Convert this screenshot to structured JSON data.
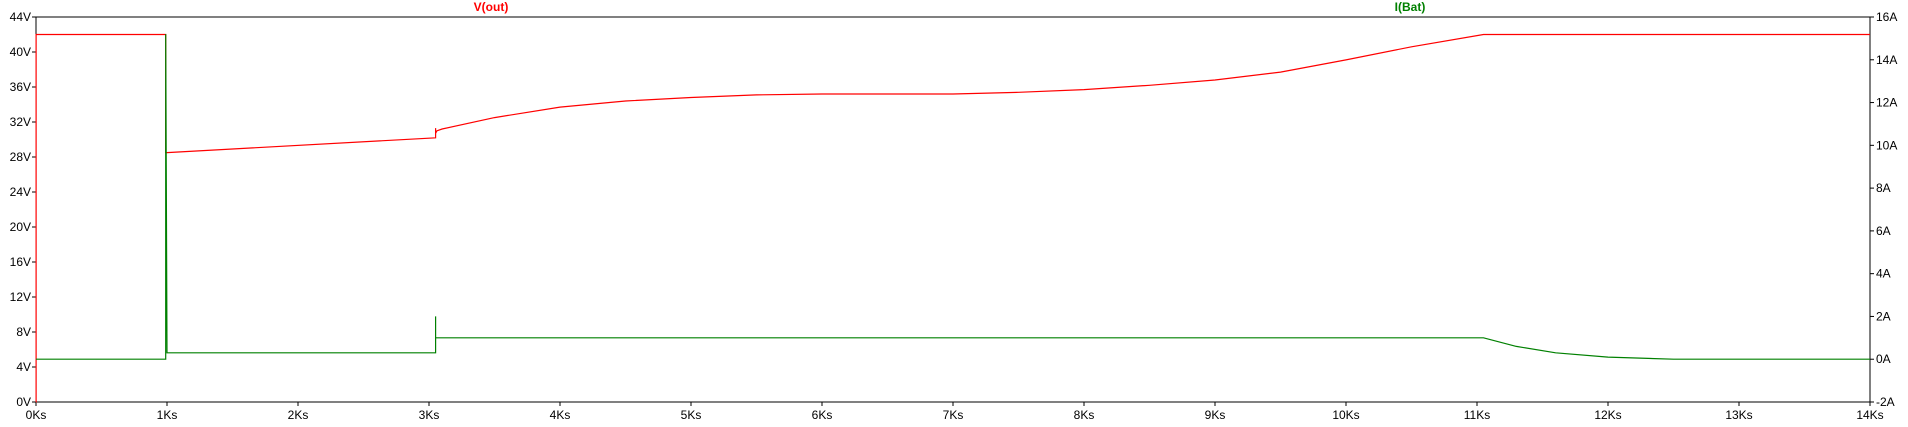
{
  "chart_data": {
    "type": "line",
    "title": "",
    "xlabel": "",
    "x_ticks": [
      "0Ks",
      "1Ks",
      "2Ks",
      "3Ks",
      "4Ks",
      "5Ks",
      "6Ks",
      "7Ks",
      "8Ks",
      "9Ks",
      "10Ks",
      "11Ks",
      "12Ks",
      "13Ks",
      "14Ks"
    ],
    "y_left_ticks": [
      "0V",
      "4V",
      "8V",
      "12V",
      "16V",
      "20V",
      "24V",
      "28V",
      "32V",
      "36V",
      "40V",
      "44V"
    ],
    "y_right_ticks": [
      "-2A",
      "0A",
      "2A",
      "4A",
      "6A",
      "8A",
      "10A",
      "12A",
      "14A",
      "16A"
    ],
    "xlim": [
      0,
      14000
    ],
    "ylim_left": [
      0,
      44
    ],
    "ylim_right": [
      -2,
      16
    ],
    "grid": false,
    "series": [
      {
        "name": "V(out)",
        "color": "#ff0000",
        "axis": "left",
        "x": [
          0,
          1,
          1,
          990,
          990,
          1000,
          3050,
          3050,
          3050,
          3060,
          3100,
          3500,
          4000,
          4500,
          5000,
          5500,
          6000,
          6500,
          7000,
          7500,
          8000,
          8500,
          9000,
          9500,
          10000,
          10500,
          11050,
          11100,
          14000
        ],
        "y": [
          0,
          0,
          42,
          42,
          28.5,
          28.5,
          30.2,
          31.3,
          30.7,
          31,
          31.2,
          32.5,
          33.7,
          34.4,
          34.8,
          35.1,
          35.2,
          35.2,
          35.2,
          35.4,
          35.7,
          36.2,
          36.8,
          37.7,
          39.1,
          40.6,
          42,
          42,
          42
        ]
      },
      {
        "name": "I(Bat)",
        "color": "#008000",
        "axis": "right",
        "x": [
          0,
          990,
          990,
          1000,
          3050,
          3050,
          3050,
          3060,
          11050,
          11300,
          11600,
          12000,
          12500,
          14000
        ],
        "y": [
          0,
          0,
          15.2,
          0.3,
          0.3,
          2.0,
          1.0,
          1.0,
          1.0,
          0.6,
          0.3,
          0.1,
          0.0,
          0.0
        ]
      }
    ]
  }
}
